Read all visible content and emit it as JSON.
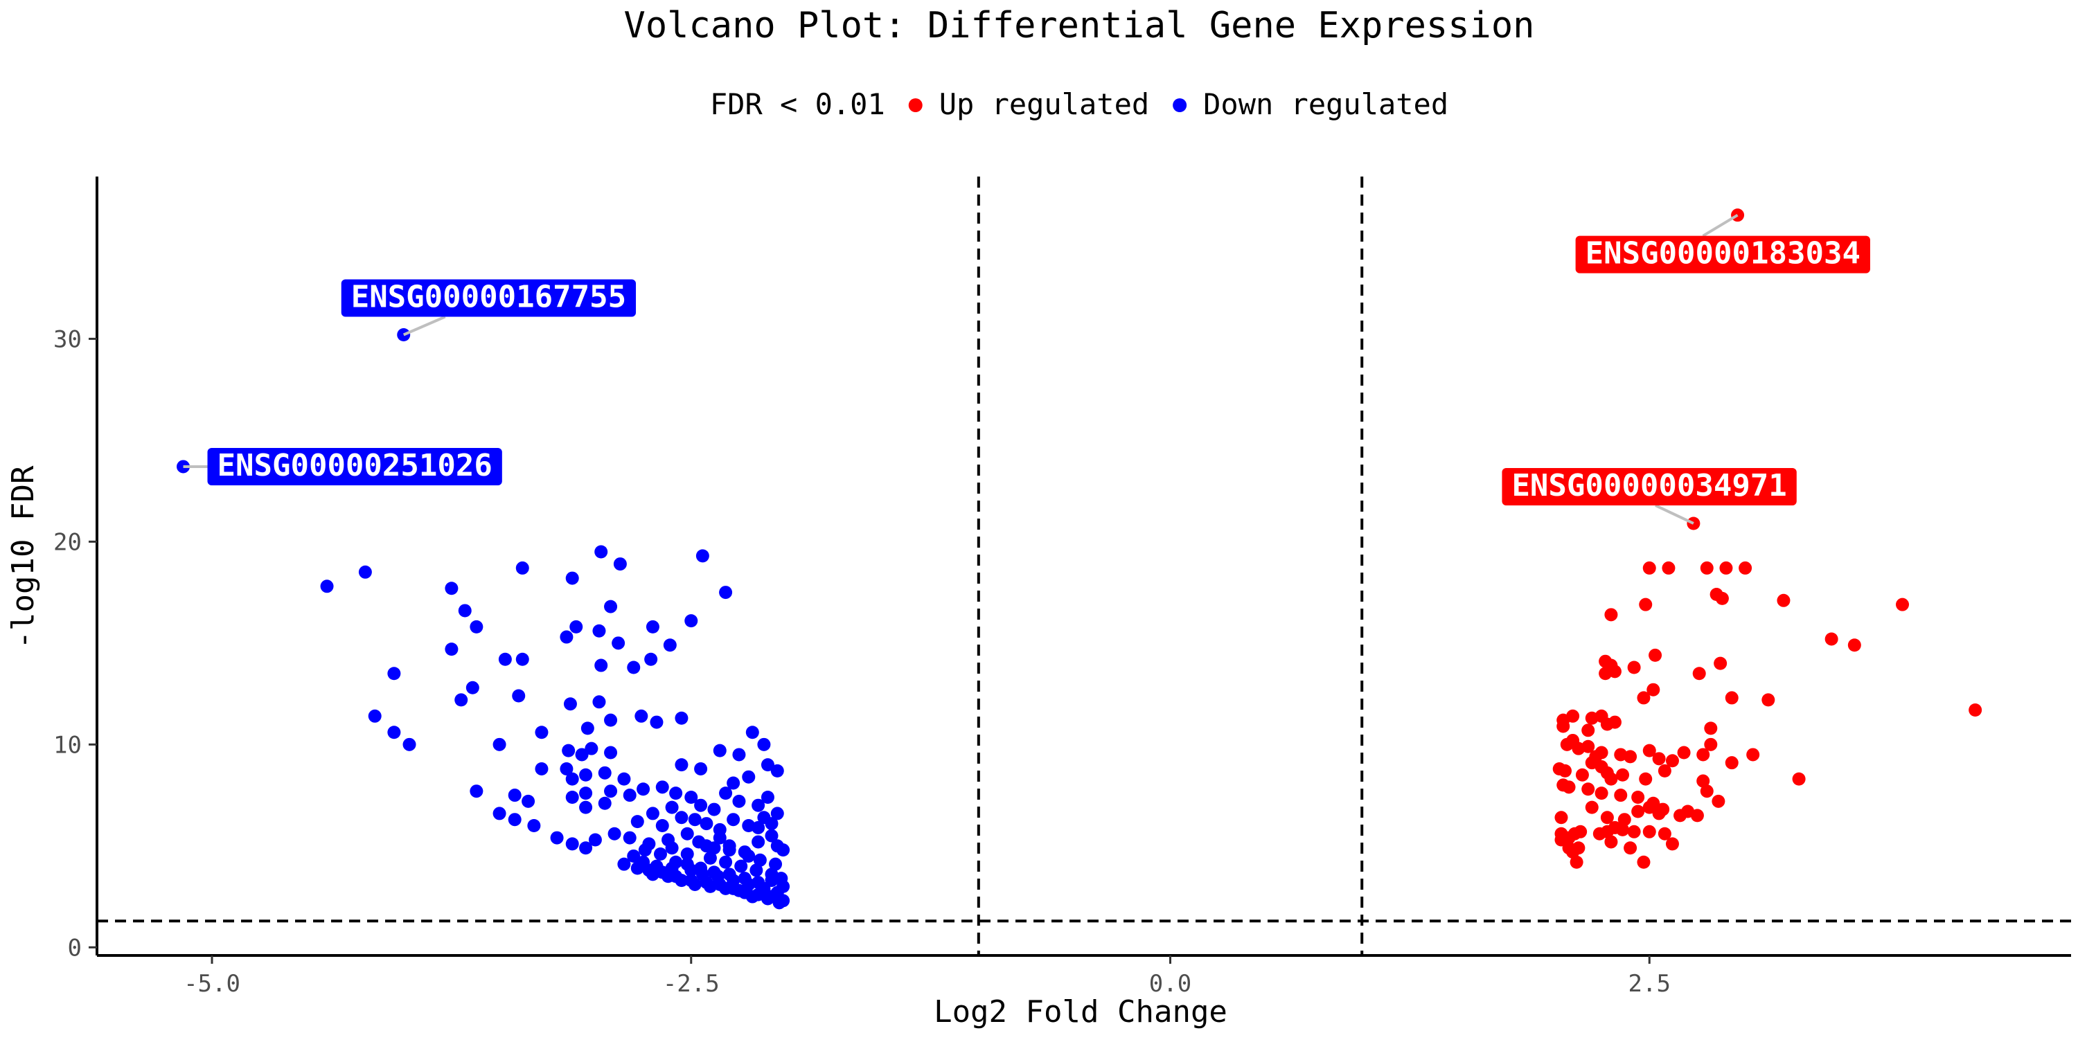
{
  "chart_data": {
    "type": "scatter",
    "title": "Volcano Plot: Differential Gene Expression",
    "xlabel": "Log2 Fold Change",
    "ylabel": "-log10 FDR",
    "xlim": [
      -5.6,
      4.7
    ],
    "ylim": [
      -0.4,
      38
    ],
    "x_ticks": [
      -5.0,
      -2.5,
      0.0,
      2.5
    ],
    "x_tick_labels": [
      "-5.0",
      "-2.5",
      "0.0",
      "2.5"
    ],
    "y_ticks": [
      0,
      10,
      20,
      30
    ],
    "y_tick_labels": [
      "0",
      "10",
      "20",
      "30"
    ],
    "grid": false,
    "legend": {
      "title": "FDR < 0.01",
      "position": "top",
      "entries": [
        {
          "label": "Up regulated",
          "color": "#ff0000"
        },
        {
          "label": "Down regulated",
          "color": "#0000ff"
        }
      ]
    },
    "thresholds": {
      "x": [
        -1.0,
        1.0
      ],
      "y": 1.3
    },
    "series": [
      {
        "name": "Up regulated",
        "color": "#ff0000",
        "points": [
          [
            2.96,
            36.1
          ],
          [
            2.73,
            20.9
          ],
          [
            2.5,
            18.7
          ],
          [
            2.6,
            18.7
          ],
          [
            2.8,
            18.7
          ],
          [
            2.9,
            18.7
          ],
          [
            3.0,
            18.7
          ],
          [
            2.85,
            17.4
          ],
          [
            2.88,
            17.2
          ],
          [
            3.2,
            17.1
          ],
          [
            3.82,
            16.9
          ],
          [
            2.48,
            16.9
          ],
          [
            2.3,
            16.4
          ],
          [
            3.45,
            15.2
          ],
          [
            3.57,
            14.9
          ],
          [
            2.53,
            14.4
          ],
          [
            2.27,
            14.1
          ],
          [
            2.3,
            13.9
          ],
          [
            2.42,
            13.8
          ],
          [
            2.87,
            14.0
          ],
          [
            2.27,
            13.5
          ],
          [
            2.32,
            13.6
          ],
          [
            2.76,
            13.5
          ],
          [
            2.52,
            12.7
          ],
          [
            2.47,
            12.3
          ],
          [
            3.12,
            12.2
          ],
          [
            2.93,
            12.3
          ],
          [
            4.2,
            11.7
          ],
          [
            2.05,
            11.2
          ],
          [
            2.1,
            11.4
          ],
          [
            2.2,
            11.3
          ],
          [
            2.25,
            11.4
          ],
          [
            2.05,
            10.9
          ],
          [
            2.18,
            10.7
          ],
          [
            2.28,
            11.0
          ],
          [
            2.32,
            11.1
          ],
          [
            2.82,
            10.8
          ],
          [
            2.1,
            10.2
          ],
          [
            2.07,
            10.0
          ],
          [
            2.13,
            9.8
          ],
          [
            2.18,
            9.9
          ],
          [
            2.22,
            9.4
          ],
          [
            2.2,
            9.1
          ],
          [
            2.25,
            9.6
          ],
          [
            2.35,
            9.5
          ],
          [
            2.4,
            9.4
          ],
          [
            2.5,
            9.7
          ],
          [
            2.55,
            9.3
          ],
          [
            2.62,
            9.2
          ],
          [
            2.68,
            9.6
          ],
          [
            2.82,
            10.0
          ],
          [
            2.78,
            9.5
          ],
          [
            2.93,
            9.1
          ],
          [
            3.04,
            9.5
          ],
          [
            2.03,
            8.8
          ],
          [
            2.06,
            8.7
          ],
          [
            2.15,
            8.5
          ],
          [
            2.25,
            8.9
          ],
          [
            2.28,
            8.6
          ],
          [
            2.3,
            8.3
          ],
          [
            2.36,
            8.5
          ],
          [
            2.48,
            8.3
          ],
          [
            2.58,
            8.7
          ],
          [
            2.78,
            8.2
          ],
          [
            3.28,
            8.3
          ],
          [
            2.05,
            8.0
          ],
          [
            2.08,
            7.9
          ],
          [
            2.18,
            7.8
          ],
          [
            2.25,
            7.6
          ],
          [
            2.35,
            7.5
          ],
          [
            2.44,
            7.4
          ],
          [
            2.52,
            7.1
          ],
          [
            2.57,
            6.8
          ],
          [
            2.5,
            6.9
          ],
          [
            2.55,
            6.6
          ],
          [
            2.66,
            6.5
          ],
          [
            2.7,
            6.7
          ],
          [
            2.75,
            6.5
          ],
          [
            2.86,
            7.2
          ],
          [
            2.8,
            7.7
          ],
          [
            2.04,
            6.4
          ],
          [
            2.2,
            6.9
          ],
          [
            2.28,
            6.4
          ],
          [
            2.37,
            6.3
          ],
          [
            2.44,
            6.7
          ],
          [
            2.04,
            5.6
          ],
          [
            2.08,
            5.4
          ],
          [
            2.11,
            5.6
          ],
          [
            2.14,
            5.7
          ],
          [
            2.24,
            5.6
          ],
          [
            2.28,
            5.7
          ],
          [
            2.32,
            5.9
          ],
          [
            2.36,
            5.8
          ],
          [
            2.42,
            5.7
          ],
          [
            2.5,
            5.7
          ],
          [
            2.58,
            5.6
          ],
          [
            2.62,
            5.1
          ],
          [
            2.04,
            5.3
          ],
          [
            2.08,
            4.9
          ],
          [
            2.1,
            4.7
          ],
          [
            2.13,
            4.9
          ],
          [
            2.3,
            5.2
          ],
          [
            2.4,
            4.9
          ],
          [
            2.12,
            4.2
          ],
          [
            2.47,
            4.2
          ]
        ]
      },
      {
        "name": "Down regulated",
        "color": "#0000ff",
        "points": [
          [
            -4.0,
            30.2
          ],
          [
            -5.15,
            23.7
          ],
          [
            -4.4,
            17.8
          ],
          [
            -4.2,
            18.5
          ],
          [
            -3.75,
            17.7
          ],
          [
            -3.68,
            16.6
          ],
          [
            -3.62,
            15.8
          ],
          [
            -3.75,
            14.7
          ],
          [
            -3.47,
            14.2
          ],
          [
            -3.38,
            14.2
          ],
          [
            -4.05,
            13.5
          ],
          [
            -3.64,
            12.8
          ],
          [
            -3.7,
            12.2
          ],
          [
            -3.4,
            12.4
          ],
          [
            -4.15,
            11.4
          ],
          [
            -4.05,
            10.6
          ],
          [
            -3.97,
            10.0
          ],
          [
            -3.5,
            10.0
          ],
          [
            -3.62,
            7.7
          ],
          [
            -3.38,
            18.7
          ],
          [
            -3.12,
            18.2
          ],
          [
            -2.97,
            19.5
          ],
          [
            -2.87,
            18.9
          ],
          [
            -2.44,
            19.3
          ],
          [
            -2.32,
            17.5
          ],
          [
            -2.92,
            16.8
          ],
          [
            -3.1,
            15.8
          ],
          [
            -2.98,
            15.6
          ],
          [
            -2.88,
            15.0
          ],
          [
            -3.15,
            15.3
          ],
          [
            -2.7,
            15.8
          ],
          [
            -2.61,
            14.9
          ],
          [
            -2.5,
            16.1
          ],
          [
            -2.71,
            14.2
          ],
          [
            -2.97,
            13.9
          ],
          [
            -2.8,
            13.8
          ],
          [
            -3.13,
            12.0
          ],
          [
            -2.98,
            12.1
          ],
          [
            -2.92,
            11.2
          ],
          [
            -3.28,
            10.6
          ],
          [
            -3.04,
            10.8
          ],
          [
            -2.76,
            11.4
          ],
          [
            -2.68,
            11.1
          ],
          [
            -2.55,
            11.3
          ],
          [
            -3.14,
            9.7
          ],
          [
            -3.07,
            9.5
          ],
          [
            -3.02,
            9.8
          ],
          [
            -2.92,
            9.6
          ],
          [
            -3.15,
            8.8
          ],
          [
            -3.12,
            8.3
          ],
          [
            -3.05,
            8.5
          ],
          [
            -2.95,
            8.6
          ],
          [
            -2.85,
            8.3
          ],
          [
            -3.28,
            8.8
          ],
          [
            -3.42,
            7.5
          ],
          [
            -3.35,
            7.2
          ],
          [
            -3.12,
            7.4
          ],
          [
            -3.05,
            7.6
          ],
          [
            -2.92,
            7.7
          ],
          [
            -2.95,
            7.1
          ],
          [
            -3.05,
            6.9
          ],
          [
            -2.82,
            7.5
          ],
          [
            -2.75,
            7.8
          ],
          [
            -2.65,
            7.9
          ],
          [
            -2.58,
            7.6
          ],
          [
            -2.5,
            7.4
          ],
          [
            -2.45,
            7.0
          ],
          [
            -2.38,
            6.8
          ],
          [
            -2.6,
            6.9
          ],
          [
            -2.7,
            6.6
          ],
          [
            -2.78,
            6.2
          ],
          [
            -2.65,
            6.0
          ],
          [
            -2.55,
            6.4
          ],
          [
            -2.48,
            6.3
          ],
          [
            -2.42,
            6.1
          ],
          [
            -3.5,
            6.6
          ],
          [
            -3.42,
            6.3
          ],
          [
            -3.32,
            6.0
          ],
          [
            -3.2,
            5.4
          ],
          [
            -3.12,
            5.1
          ],
          [
            -3.05,
            4.9
          ],
          [
            -3.0,
            5.3
          ],
          [
            -2.9,
            5.6
          ],
          [
            -2.82,
            5.4
          ],
          [
            -2.72,
            5.1
          ],
          [
            -2.62,
            5.3
          ],
          [
            -2.52,
            5.6
          ],
          [
            -2.42,
            5.0
          ],
          [
            -2.35,
            5.4
          ],
          [
            -2.3,
            5.0
          ],
          [
            -2.2,
            4.5
          ],
          [
            -2.15,
            5.2
          ],
          [
            -2.08,
            5.5
          ],
          [
            -2.05,
            5.0
          ],
          [
            -2.02,
            4.8
          ],
          [
            -2.55,
            9.0
          ],
          [
            -2.45,
            8.8
          ],
          [
            -2.35,
            9.7
          ],
          [
            -2.25,
            9.5
          ],
          [
            -2.18,
            10.6
          ],
          [
            -2.12,
            10.0
          ],
          [
            -2.1,
            9.0
          ],
          [
            -2.05,
            8.7
          ],
          [
            -2.28,
            8.1
          ],
          [
            -2.2,
            8.4
          ],
          [
            -2.1,
            7.4
          ],
          [
            -2.15,
            7.0
          ],
          [
            -2.25,
            7.2
          ],
          [
            -2.32,
            7.6
          ],
          [
            -2.05,
            6.6
          ],
          [
            -2.12,
            6.4
          ],
          [
            -2.2,
            6.0
          ],
          [
            -2.28,
            6.3
          ],
          [
            -2.35,
            5.8
          ],
          [
            -2.15,
            5.9
          ],
          [
            -2.08,
            6.1
          ],
          [
            -2.85,
            4.1
          ],
          [
            -2.78,
            3.9
          ],
          [
            -2.72,
            3.8
          ],
          [
            -2.65,
            3.7
          ],
          [
            -2.58,
            3.5
          ],
          [
            -2.5,
            3.3
          ],
          [
            -2.42,
            3.2
          ],
          [
            -2.35,
            3.1
          ],
          [
            -2.28,
            2.9
          ],
          [
            -2.22,
            2.7
          ],
          [
            -2.15,
            2.6
          ],
          [
            -2.08,
            2.5
          ],
          [
            -2.02,
            2.3
          ],
          [
            -2.04,
            2.2
          ],
          [
            -2.1,
            2.4
          ],
          [
            -2.18,
            2.5
          ],
          [
            -2.25,
            2.8
          ],
          [
            -2.32,
            2.9
          ],
          [
            -2.4,
            3.0
          ],
          [
            -2.48,
            3.1
          ],
          [
            -2.55,
            3.3
          ],
          [
            -2.62,
            3.5
          ],
          [
            -2.7,
            3.6
          ],
          [
            -2.8,
            4.5
          ],
          [
            -2.75,
            4.2
          ],
          [
            -2.68,
            4.0
          ],
          [
            -2.6,
            3.9
          ],
          [
            -2.52,
            4.1
          ],
          [
            -2.45,
            3.9
          ],
          [
            -2.38,
            3.7
          ],
          [
            -2.3,
            3.6
          ],
          [
            -2.22,
            3.4
          ],
          [
            -2.15,
            3.2
          ],
          [
            -2.08,
            3.3
          ],
          [
            -2.02,
            3.0
          ],
          [
            -2.05,
            2.7
          ],
          [
            -2.12,
            2.9
          ],
          [
            -2.2,
            3.1
          ],
          [
            -2.28,
            3.3
          ],
          [
            -2.36,
            3.5
          ],
          [
            -2.44,
            3.6
          ],
          [
            -2.5,
            3.8
          ],
          [
            -2.58,
            4.2
          ],
          [
            -2.66,
            4.6
          ],
          [
            -2.74,
            4.8
          ],
          [
            -2.4,
            4.4
          ],
          [
            -2.32,
            4.2
          ],
          [
            -2.24,
            4.0
          ],
          [
            -2.16,
            3.8
          ],
          [
            -2.08,
            3.6
          ],
          [
            -2.03,
            3.4
          ],
          [
            -2.06,
            4.1
          ],
          [
            -2.14,
            4.3
          ],
          [
            -2.22,
            4.7
          ],
          [
            -2.3,
            4.8
          ],
          [
            -2.38,
            4.9
          ],
          [
            -2.46,
            5.2
          ],
          [
            -2.52,
            4.6
          ],
          [
            -2.6,
            4.9
          ]
        ]
      }
    ],
    "annotations": [
      {
        "text": "ENSG00000183034",
        "point": [
          2.96,
          36.1
        ],
        "series": "Up regulated",
        "anchor": "lower-left"
      },
      {
        "text": "ENSG00000034971",
        "point": [
          2.73,
          20.9
        ],
        "series": "Up regulated",
        "anchor": "upper-left"
      },
      {
        "text": "ENSG00000167755",
        "point": [
          -4.0,
          30.2
        ],
        "series": "Down regulated",
        "anchor": "upper-right"
      },
      {
        "text": "ENSG00000251026",
        "point": [
          -5.15,
          23.7
        ],
        "series": "Down regulated",
        "anchor": "right"
      }
    ]
  }
}
